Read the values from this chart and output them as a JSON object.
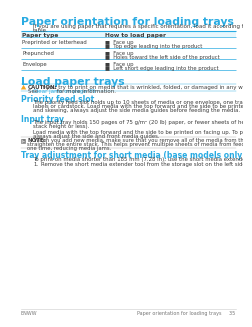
{
  "bg_color": "#ffffff",
  "cyan": "#29abe2",
  "dark": "#3d3d3d",
  "gray": "#777777",
  "table_header_bg": "#e6f7fd",
  "title1": "Paper orientation for loading trays",
  "title2": "Load paper trays",
  "subtitle1": "Priority feed slot",
  "subtitle2": "Input tray",
  "subtitle3": "Tray adjustment for short media (base models only)",
  "intro_line1": "If you are using paper that requires a specific orientation, load it according to the information in the following",
  "intro_line2": "table.",
  "col1_header": "Paper type",
  "col2_header": "How to load paper",
  "rows": [
    [
      "Preprinted or letterhead",
      "Face up",
      "Top edge leading into the product"
    ],
    [
      "Prepunched",
      "Face up",
      "Holes toward the left side of the product"
    ],
    [
      "Envelope",
      "Face up",
      "Left short edge leading into the product"
    ]
  ],
  "caution_label": "CAUTION:",
  "caution_body": "If you try to print on media that is wrinkled, folded, or damaged in any way, a jam might occur.",
  "caution_line2a": "See ",
  "caution_link": "Clear jams on page 75",
  "caution_line2b": " for more information.",
  "pfs_lines": [
    "The priority feed slot holds up to 10 sheets of media or one envelope, one transparency, or one sheet of",
    "labels or cardstock. Load media with the top forward and the side to be printed on facing up. To prevent jams",
    "and skewing, always adjust the side media guides before feeding the media."
  ],
  "it_line1a": "The input tray holds 150 pages of 75 g/m² (20 lb) paper, or fewer sheets of heavier media (a 15 mm (0.6 in)",
  "it_line1b": "stack height or less).",
  "it_line2a": "Load media with the top forward and the side to be printed on facing up. To prevent jams and skewing,",
  "it_line2b": "always adjust the side and front media guides.",
  "note_label": "NOTE:",
  "note_lines": [
    "When you add new media, make sure that you remove all of the media from the input tray and",
    "straighten the entire stack. This helps prevent multiple sheets of media from feeding through the product at",
    "one time, reducing media jams."
  ],
  "sm_line": "To print on media shorter than 185 mm (7.28 in), use the short media extender to adjust your input tray.",
  "step1_num": "1.",
  "step1_line": "Remove the short media extender tool from the storage slot on the left side of the media input area.",
  "footer_left": "ENWW",
  "footer_right": "Paper orientation for loading trays     35"
}
